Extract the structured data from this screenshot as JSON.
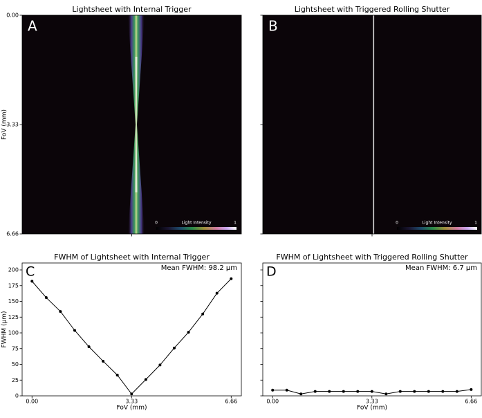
{
  "chart_data": [
    {
      "type": "image",
      "title": "Lightsheet with Internal Trigger",
      "panel_label": "A",
      "y_label": "FoV (mm)",
      "xlim": [
        0,
        6.66
      ],
      "xticks": [
        3.33
      ],
      "show_xtick_labels": false,
      "ylim": [
        0,
        6.66
      ],
      "yticks": [
        {
          "value": 0,
          "label": "0.00"
        },
        3.33,
        6.66
      ],
      "show_ytick_labels": true,
      "colorbar": {
        "label": "Light Intensity",
        "ticks": [
          0,
          1
        ]
      }
    },
    {
      "type": "image",
      "title": "Lightsheet with Triggered Rolling Shutter",
      "panel_label": "B",
      "xlim": [
        0,
        6.66
      ],
      "xticks": [
        3.33
      ],
      "show_xtick_labels": false,
      "ylim": [
        0,
        6.66
      ],
      "yticks": [
        {
          "value": 0,
          "label": "0.00"
        },
        3.33,
        6.66
      ],
      "show_ytick_labels": false,
      "colorbar": {
        "label": "Light Intensity",
        "ticks": [
          0,
          1
        ]
      }
    },
    {
      "type": "line",
      "title": "FWHM of Lightsheet with Internal Trigger",
      "panel_label": "C",
      "annotation": "Mean FWHM: 98.2 µm",
      "x_label": "FoV (mm)",
      "y_label": "FWHM (µm)",
      "x": [
        0,
        0.476,
        0.951,
        1.427,
        1.903,
        2.379,
        2.854,
        3.33,
        3.806,
        4.281,
        4.757,
        5.233,
        5.709,
        6.184,
        6.66
      ],
      "series": [
        {
          "color": "#000000",
          "values": [
            182,
            156,
            134,
            104,
            78,
            55,
            33,
            3,
            26,
            49,
            76,
            101,
            130,
            163,
            186
          ]
        }
      ],
      "xlim": [
        -0.33,
        7.0
      ],
      "xticks": [
        {
          "value": 0,
          "label": "0.00"
        },
        3.33,
        6.66
      ],
      "show_xtick_labels": true,
      "ylim": [
        0,
        211
      ],
      "yticks": [
        0,
        25,
        50,
        75,
        100,
        125,
        150,
        175,
        200
      ],
      "show_ytick_labels": true
    },
    {
      "type": "line",
      "title": "FWHM of Lightsheet with Triggered Rolling Shutter",
      "panel_label": "D",
      "annotation": "Mean FWHM: 6.7 µm",
      "x_label": "FoV (mm)",
      "x": [
        0,
        0.476,
        0.951,
        1.427,
        1.903,
        2.379,
        2.854,
        3.33,
        3.806,
        4.281,
        4.757,
        5.233,
        5.709,
        6.184,
        6.66
      ],
      "series": [
        {
          "color": "#000000",
          "values": [
            9,
            9,
            3,
            7,
            7,
            7,
            7,
            7,
            3,
            7,
            7,
            7,
            7,
            7,
            10
          ]
        }
      ],
      "xlim": [
        -0.33,
        7.0
      ],
      "xticks": [
        {
          "value": 0,
          "label": "0.00"
        },
        3.33,
        6.66
      ],
      "show_xtick_labels": true,
      "ylim": [
        0,
        211
      ],
      "yticks": [
        0,
        25,
        50,
        75,
        100,
        125,
        150,
        175,
        200
      ],
      "show_ytick_labels": false
    }
  ]
}
